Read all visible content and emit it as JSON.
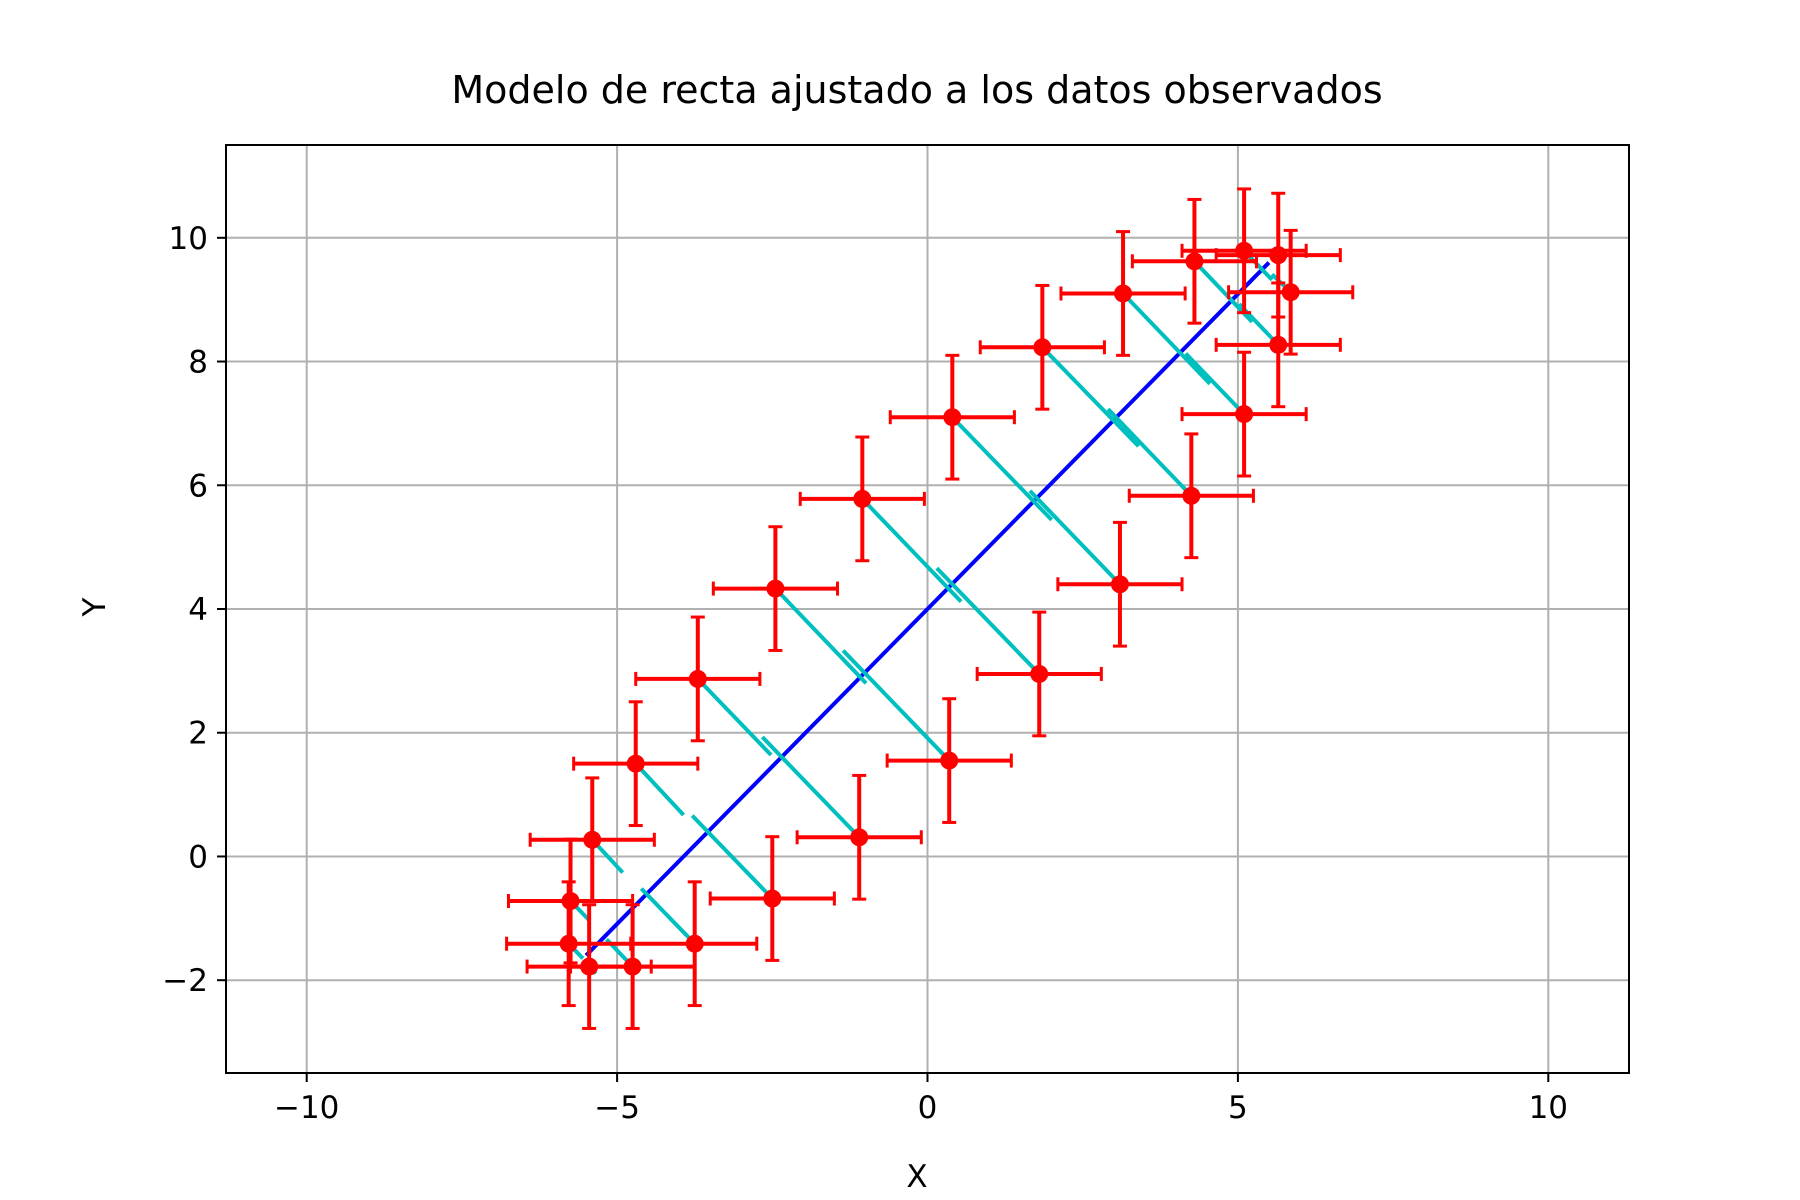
{
  "chart_data": {
    "type": "scatter",
    "title": "Modelo de recta ajustado a los datos observados",
    "xlabel": "X",
    "ylabel": "Y",
    "xlim": [
      -11.3,
      11.3
    ],
    "ylim": [
      -3.5,
      11.5
    ],
    "xticks": [
      -10,
      -5,
      0,
      5,
      10
    ],
    "xtick_labels": [
      "−10",
      "−5",
      "0",
      "5",
      "10"
    ],
    "yticks": [
      -2,
      0,
      2,
      4,
      6,
      8,
      10
    ],
    "ytick_labels": [
      "−2",
      "0",
      "2",
      "4",
      "6",
      "8",
      "10"
    ],
    "grid": true,
    "legend": "none",
    "colors": {
      "points": "#ff0000",
      "fit_line": "#0000ff",
      "residuals": "#00bfbf",
      "grid": "#b0b0b0"
    },
    "error": {
      "x": 1.0,
      "y": 1.0
    },
    "fit_line": {
      "x": [
        -5.5,
        5.5
      ],
      "y": [
        -1.6,
        9.6
      ]
    },
    "points": [
      {
        "x": -5.75,
        "y": -0.72,
        "fx": -5.45,
        "fy": -1.03
      },
      {
        "x": -5.4,
        "y": 0.27,
        "fx": -4.91,
        "fy": -0.26
      },
      {
        "x": -4.7,
        "y": 1.5,
        "fx": -3.93,
        "fy": 0.67
      },
      {
        "x": -3.7,
        "y": 2.87,
        "fx": -2.52,
        "fy": 1.64
      },
      {
        "x": -2.45,
        "y": 4.33,
        "fx": -0.99,
        "fy": 2.8
      },
      {
        "x": -1.05,
        "y": 5.78,
        "fx": 0.54,
        "fy": 4.12
      },
      {
        "x": 0.4,
        "y": 7.1,
        "fx": 2.0,
        "fy": 5.44
      },
      {
        "x": 1.85,
        "y": 8.23,
        "fx": 3.4,
        "fy": 6.63
      },
      {
        "x": 3.15,
        "y": 9.1,
        "fx": 4.55,
        "fy": 7.64
      },
      {
        "x": 4.3,
        "y": 9.62,
        "fx": 5.23,
        "fy": 8.64
      },
      {
        "x": 5.1,
        "y": 9.79,
        "fx": 5.55,
        "fy": 9.32
      },
      {
        "x": 5.65,
        "y": 9.72,
        "fx": 5.55,
        "fy": 9.81
      },
      {
        "x": 5.85,
        "y": 9.12,
        "fx": 5.55,
        "fy": 9.41
      },
      {
        "x": 5.65,
        "y": 8.27,
        "fx": 5.02,
        "fy": 8.93
      },
      {
        "x": 5.1,
        "y": 7.15,
        "fx": 4.16,
        "fy": 8.13
      },
      {
        "x": 4.25,
        "y": 5.83,
        "fx": 2.91,
        "fy": 7.23
      },
      {
        "x": 3.1,
        "y": 4.4,
        "fx": 1.65,
        "fy": 5.91
      },
      {
        "x": 1.8,
        "y": 2.95,
        "fx": 0.15,
        "fy": 4.66
      },
      {
        "x": 0.35,
        "y": 1.55,
        "fx": -1.36,
        "fy": 3.33
      },
      {
        "x": -1.1,
        "y": 0.31,
        "fx": -2.66,
        "fy": 1.93
      },
      {
        "x": -2.5,
        "y": -0.68,
        "fx": -3.79,
        "fy": 0.66
      },
      {
        "x": -3.75,
        "y": -1.41,
        "fx": -4.61,
        "fy": -0.52
      },
      {
        "x": -4.75,
        "y": -1.78,
        "fx": -5.17,
        "fy": -1.34
      },
      {
        "x": -5.45,
        "y": -1.78,
        "fx": -5.34,
        "fy": -1.89
      },
      {
        "x": -5.78,
        "y": -1.41,
        "fx": -5.55,
        "fy": -1.65
      }
    ]
  }
}
